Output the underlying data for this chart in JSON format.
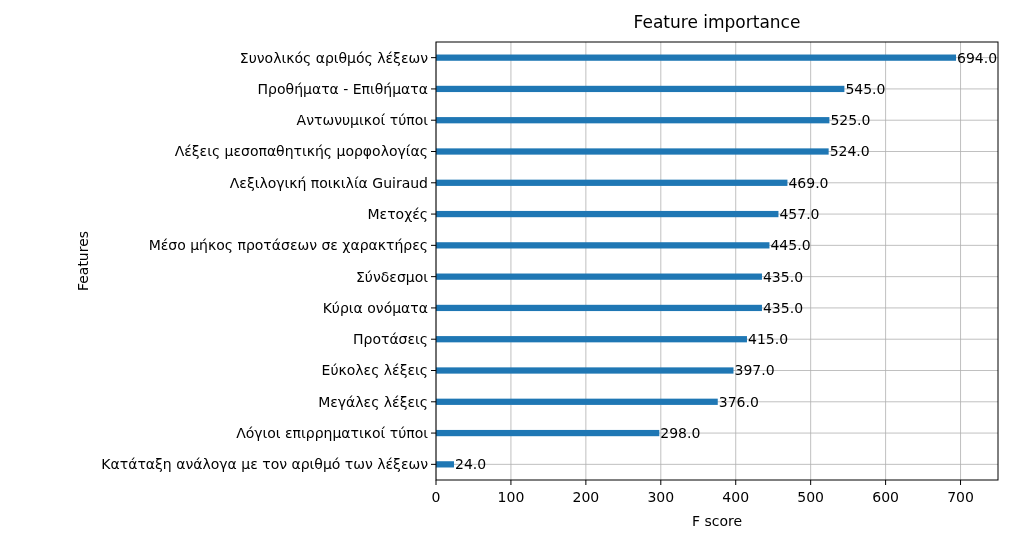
{
  "chart_data": {
    "type": "bar",
    "orientation": "horizontal",
    "title": "Feature importance",
    "xlabel": "F score",
    "ylabel": "Features",
    "categories": [
      "Συνολικός αριθμός λέξεων",
      "Προθήματα - Επιθήματα",
      "Αντωνυμικοί τύποι",
      "Λέξεις μεσοπαθητικής μορφολογίας",
      "Λεξιλογική ποικιλία Guiraud",
      "Μετοχές",
      "Μέσο μήκος προτάσεων σε χαρακτήρες",
      "Σύνδεσμοι",
      "Κύρια ονόματα",
      "Προτάσεις",
      "Εύκολες λέξεις",
      "Μεγάλες λέξεις",
      "Λόγιοι επιρρηματικοί τύποι",
      "Κατάταξη ανάλογα με τον αριθμό των λέξεων"
    ],
    "values": [
      694,
      545,
      525,
      524,
      469,
      457,
      445,
      435,
      435,
      415,
      397,
      376,
      298,
      24
    ],
    "value_labels": [
      "694.0",
      "545.0",
      "525.0",
      "524.0",
      "469.0",
      "457.0",
      "445.0",
      "435.0",
      "435.0",
      "415.0",
      "397.0",
      "376.0",
      "298.0",
      "24.0"
    ],
    "color": "#1f77b4",
    "xlim": [
      0,
      750
    ],
    "xticks": [
      0,
      100,
      200,
      300,
      400,
      500,
      600,
      700
    ],
    "grid": true
  }
}
